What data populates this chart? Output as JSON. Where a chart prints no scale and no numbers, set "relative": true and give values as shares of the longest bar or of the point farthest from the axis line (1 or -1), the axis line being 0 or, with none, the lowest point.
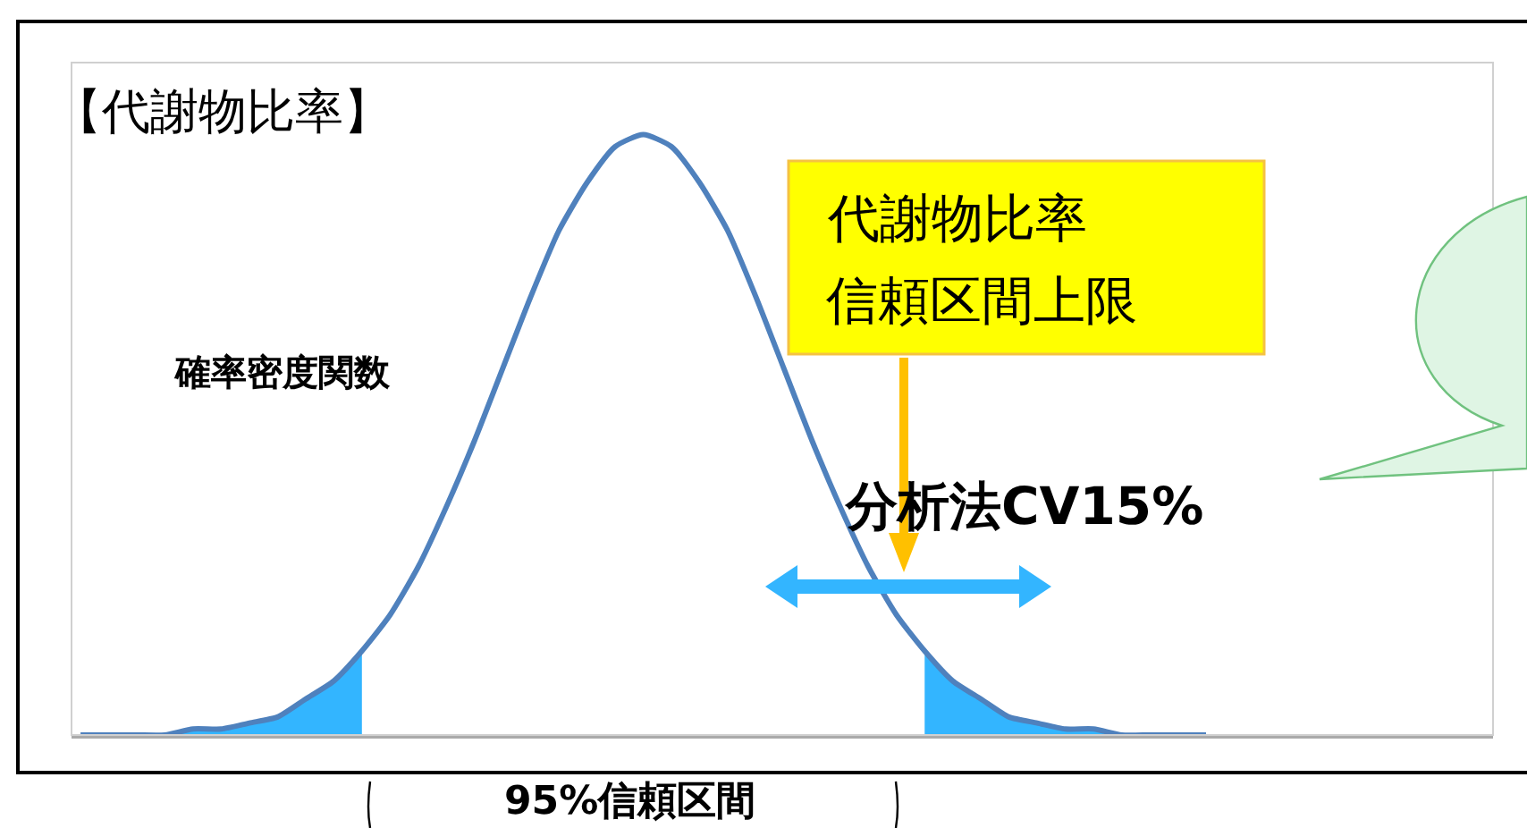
{
  "chart_data": {
    "type": "line",
    "title": "【代謝物比率】",
    "ylabel": "確率密度関数",
    "relative": true,
    "categories": [
      null,
      null,
      null,
      null,
      null,
      null,
      null,
      null,
      null,
      null,
      null,
      null,
      null,
      null,
      null,
      null,
      null,
      null,
      null,
      null,
      null,
      null,
      null,
      null,
      null,
      null,
      null,
      null,
      null,
      null,
      null,
      null,
      null,
      null,
      null,
      null,
      null,
      null,
      null,
      null,
      null,
      null,
      null,
      null,
      null,
      null,
      null,
      null,
      null,
      null,
      null
    ],
    "series": [
      {
        "color": "#4f81bd",
        "values": [
          0,
          0,
          0,
          0,
          0.01,
          0.01,
          0.02,
          0.03,
          0.06,
          0.09,
          0.14,
          0.2,
          0.28,
          0.38,
          0.49,
          0.61,
          0.73,
          0.84,
          0.92,
          0.98,
          1,
          0.98,
          0.92,
          0.84,
          0.73,
          0.61,
          0.49,
          0.38,
          0.28,
          0.2,
          0.14,
          0.09,
          0.06,
          0.03,
          0.02,
          0.01,
          0.01,
          0,
          0,
          0,
          0,
          null,
          null,
          null,
          null,
          null,
          null,
          null,
          null,
          null,
          null
        ]
      },
      {
        "type": "area",
        "color": "#33b5ff",
        "values": [
          0,
          0,
          0,
          0,
          0.01,
          0.01,
          0.02,
          0.03,
          0.06,
          0.09,
          0.14,
          null,
          null,
          null,
          null,
          null,
          null,
          null,
          null,
          null,
          null,
          null,
          null,
          null,
          null,
          null,
          null,
          null,
          null,
          null,
          null,
          null,
          null,
          null,
          null,
          null,
          null,
          null,
          null,
          null,
          null,
          null,
          null,
          null,
          null,
          null,
          null,
          null,
          null,
          null,
          null
        ]
      },
      {
        "type": "area",
        "color": "#33b5ff",
        "values": [
          null,
          null,
          null,
          null,
          null,
          null,
          null,
          null,
          null,
          null,
          null,
          null,
          null,
          null,
          null,
          null,
          null,
          null,
          null,
          null,
          null,
          null,
          null,
          null,
          null,
          null,
          null,
          null,
          null,
          null,
          0.14,
          0.09,
          0.06,
          0.03,
          0.02,
          0.01,
          0.01,
          0,
          0,
          0,
          0,
          null,
          null,
          null,
          null,
          null,
          null,
          null,
          null,
          null,
          null
        ]
      }
    ],
    "annotations": [
      "代謝物比率",
      "信頼区間上限",
      "分析法CV15%",
      "95%信頼区間"
    ]
  }
}
